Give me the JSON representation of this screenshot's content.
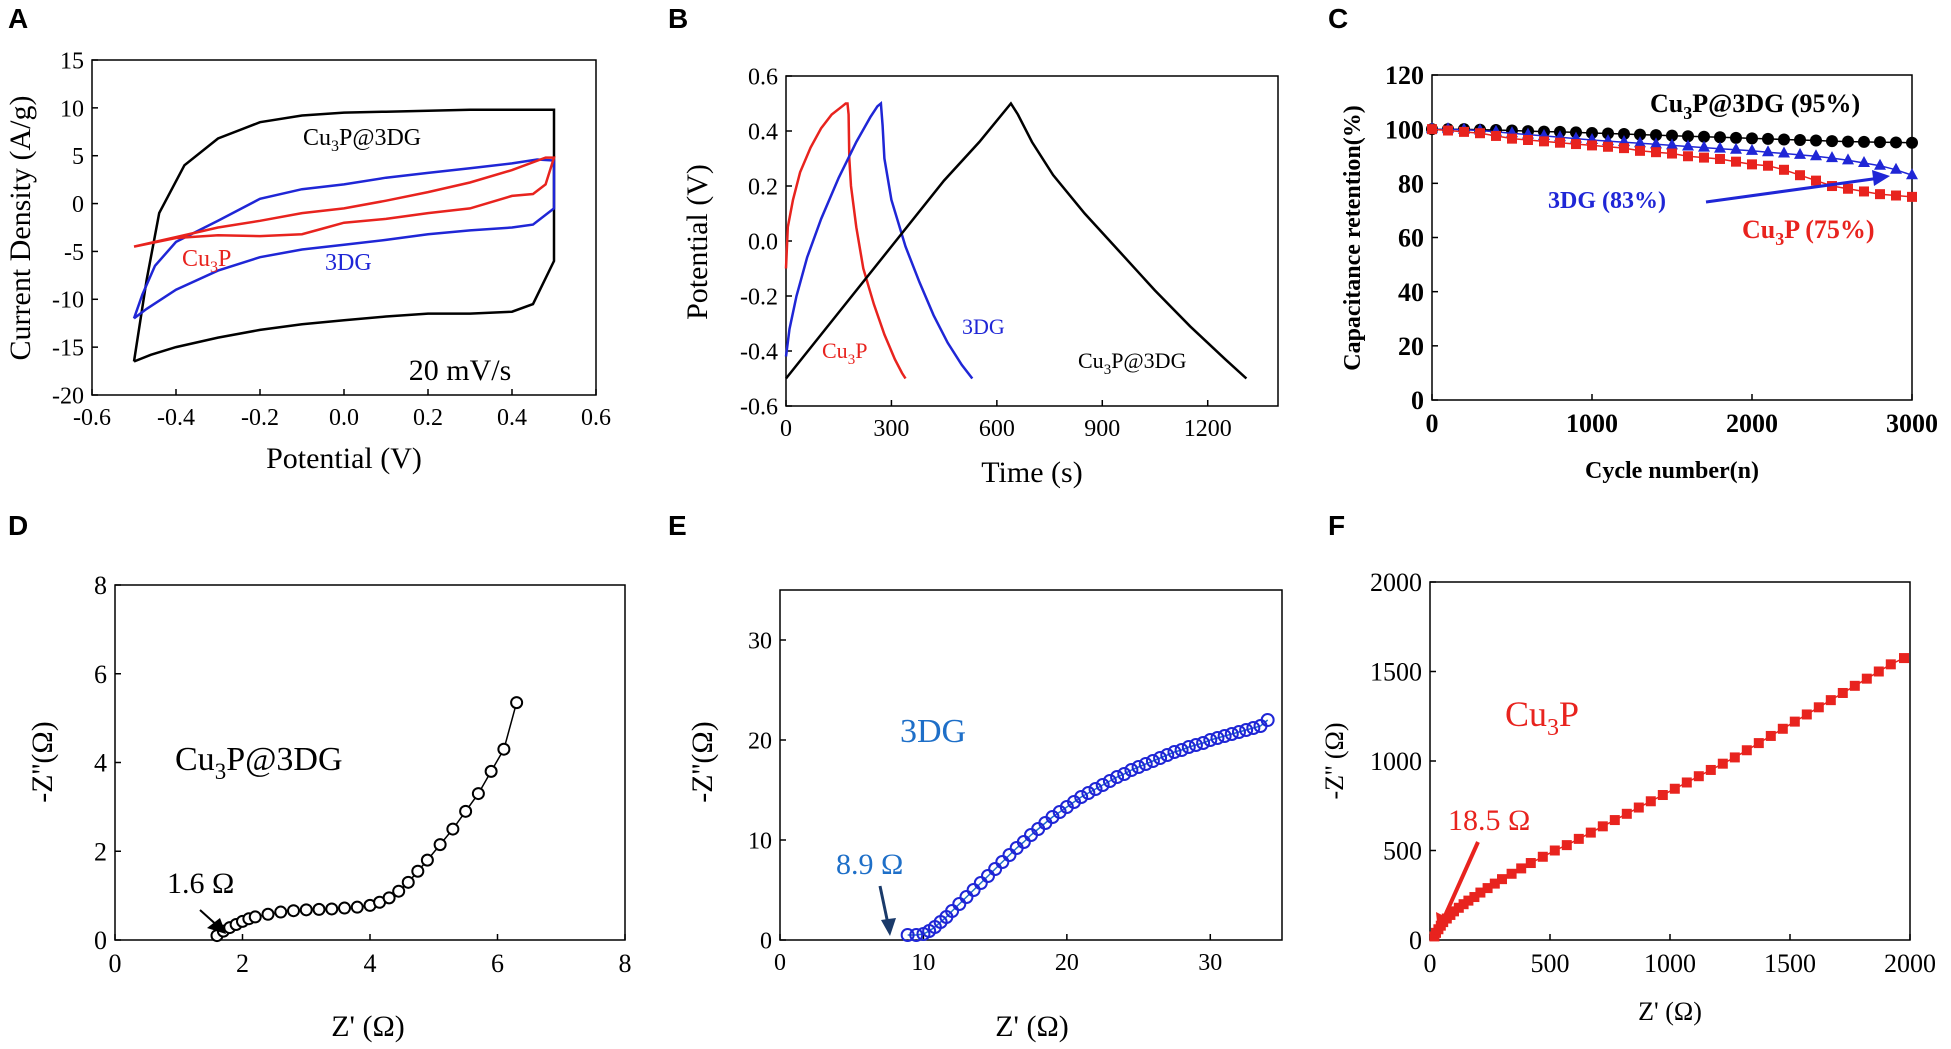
{
  "colors": {
    "black": "#000000",
    "red": "#e8231e",
    "blue": "#1f26d6",
    "steel": "#1e6fc8",
    "navy": "#1a3a6a"
  },
  "chart_data": [
    {
      "id": "A",
      "type": "line",
      "xlabel": "Potential (V)",
      "ylabel": "Current Density (A/g)",
      "xlim": [
        -0.6,
        0.6
      ],
      "ylim": [
        -20,
        15
      ],
      "xticks": [
        "-0.6",
        "-0.4",
        "-0.2",
        "0.0",
        "0.2",
        "0.4",
        "0.6"
      ],
      "yticks": [
        "15",
        "10",
        "5",
        "0",
        "-5",
        "-10",
        "-15",
        "-20"
      ],
      "annotation": "20 mV/s",
      "series": [
        {
          "name": "Cu3P@3DG",
          "label_main": "Cu",
          "label_sub": "3",
          "label_rest": "P@3DG",
          "color": "black",
          "x": [
            -0.5,
            -0.47,
            -0.44,
            -0.38,
            -0.3,
            -0.2,
            -0.1,
            0.0,
            0.1,
            0.2,
            0.3,
            0.4,
            0.5,
            0.5,
            0.45,
            0.4,
            0.3,
            0.2,
            0.1,
            0.0,
            -0.1,
            -0.2,
            -0.3,
            -0.4,
            -0.46,
            -0.5,
            -0.5
          ],
          "y": [
            -16.5,
            -8,
            -1,
            4,
            6.8,
            8.5,
            9.2,
            9.5,
            9.6,
            9.7,
            9.8,
            9.8,
            9.8,
            -6,
            -10.5,
            -11.3,
            -11.5,
            -11.5,
            -11.8,
            -12.2,
            -12.6,
            -13.2,
            -14,
            -15,
            -15.8,
            -16.5,
            -16.5
          ]
        },
        {
          "name": "3DG",
          "label_main": "3DG",
          "label_sub": "",
          "label_rest": "",
          "color": "blue",
          "x": [
            -0.5,
            -0.48,
            -0.45,
            -0.4,
            -0.3,
            -0.2,
            -0.1,
            0.0,
            0.1,
            0.2,
            0.3,
            0.4,
            0.46,
            0.5,
            0.5,
            0.45,
            0.4,
            0.3,
            0.2,
            0.1,
            0.0,
            -0.1,
            -0.2,
            -0.3,
            -0.4,
            -0.47,
            -0.5
          ],
          "y": [
            -12,
            -9.5,
            -6.5,
            -4,
            -1.8,
            0.5,
            1.5,
            2,
            2.7,
            3.2,
            3.7,
            4.2,
            4.6,
            4.5,
            -0.5,
            -2.2,
            -2.5,
            -2.8,
            -3.2,
            -3.8,
            -4.3,
            -4.8,
            -5.6,
            -7,
            -9,
            -11,
            -12
          ]
        },
        {
          "name": "Cu3P",
          "label_main": "Cu",
          "label_sub": "3",
          "label_rest": "P",
          "color": "red",
          "x": [
            -0.5,
            -0.4,
            -0.3,
            -0.2,
            -0.1,
            0.0,
            0.1,
            0.2,
            0.3,
            0.4,
            0.48,
            0.5,
            0.48,
            0.45,
            0.4,
            0.3,
            0.2,
            0.1,
            0.0,
            -0.05,
            -0.1,
            -0.2,
            -0.3,
            -0.4,
            -0.5
          ],
          "y": [
            -4.5,
            -3.5,
            -2.5,
            -1.8,
            -1,
            -0.5,
            0.3,
            1.2,
            2.2,
            3.5,
            4.8,
            4.8,
            2,
            1,
            0.8,
            -0.5,
            -1,
            -1.6,
            -2,
            -2.6,
            -3.2,
            -3.4,
            -3.3,
            -3.6,
            -4.5
          ]
        }
      ]
    },
    {
      "id": "B",
      "type": "line",
      "xlabel": "Time (s)",
      "ylabel": "Potential (V)",
      "xlim": [
        0,
        1400
      ],
      "ylim": [
        -0.6,
        0.6
      ],
      "xticks": [
        "0",
        "300",
        "600",
        "900",
        "1200"
      ],
      "yticks": [
        "0.6",
        "0.4",
        "0.2",
        "0.0",
        "-0.2",
        "-0.4",
        "-0.6"
      ],
      "series": [
        {
          "name": "Cu3P",
          "label_main": "Cu",
          "label_sub": "3",
          "label_rest": "P",
          "color": "red",
          "x": [
            0,
            5,
            20,
            40,
            70,
            100,
            130,
            160,
            170,
            175,
            178,
            180,
            185,
            200,
            220,
            250,
            280,
            310,
            330,
            340
          ],
          "y": [
            -0.1,
            0.05,
            0.15,
            0.25,
            0.34,
            0.41,
            0.46,
            0.49,
            0.5,
            0.5,
            0.46,
            0.3,
            0.2,
            0.05,
            -0.1,
            -0.23,
            -0.34,
            -0.43,
            -0.48,
            -0.5
          ]
        },
        {
          "name": "3DG",
          "label_main": "3DG",
          "label_sub": "",
          "label_rest": "",
          "color": "blue",
          "x": [
            0,
            10,
            30,
            60,
            100,
            150,
            200,
            240,
            260,
            270,
            275,
            280,
            300,
            340,
            380,
            420,
            460,
            500,
            530
          ],
          "y": [
            -0.42,
            -0.32,
            -0.2,
            -0.06,
            0.08,
            0.23,
            0.36,
            0.45,
            0.49,
            0.5,
            0.42,
            0.3,
            0.15,
            -0.02,
            -0.15,
            -0.27,
            -0.37,
            -0.45,
            -0.5
          ]
        },
        {
          "name": "Cu3P@3DG",
          "label_main": "Cu",
          "label_sub": "3",
          "label_rest": "P@3DG",
          "color": "black",
          "x": [
            0,
            150,
            300,
            450,
            550,
            640,
            660,
            700,
            760,
            850,
            950,
            1050,
            1150,
            1250,
            1310
          ],
          "y": [
            -0.5,
            -0.26,
            -0.02,
            0.22,
            0.36,
            0.5,
            0.46,
            0.36,
            0.24,
            0.1,
            -0.04,
            -0.18,
            -0.31,
            -0.43,
            -0.5
          ]
        }
      ]
    },
    {
      "id": "C",
      "type": "scatter",
      "xlabel": "Cycle number(n)",
      "ylabel": "Capacitance retention(%)",
      "xlim": [
        0,
        3000
      ],
      "ylim": [
        0,
        120
      ],
      "xticks": [
        "0",
        "1000",
        "2000",
        "3000"
      ],
      "yticks": [
        "120",
        "100",
        "80",
        "60",
        "40",
        "20",
        "0"
      ],
      "series": [
        {
          "name": "Cu3P@3DG",
          "label": "Cu3P@3DG (95%)",
          "label_main": "Cu",
          "label_sub": "3",
          "label_rest": "P@3DG (95%)",
          "color": "black",
          "x": [
            0,
            100,
            200,
            300,
            400,
            500,
            600,
            700,
            800,
            900,
            1000,
            1100,
            1200,
            1300,
            1400,
            1500,
            1600,
            1700,
            1800,
            1900,
            2000,
            2100,
            2200,
            2300,
            2400,
            2500,
            2600,
            2700,
            2800,
            2900,
            3000
          ],
          "y": [
            100,
            100,
            100,
            99.8,
            99.7,
            99.5,
            99.3,
            99.1,
            99,
            98.8,
            98.6,
            98.4,
            98.2,
            98,
            97.8,
            97.6,
            97.4,
            97.2,
            97,
            96.8,
            96.6,
            96.4,
            96.2,
            96,
            95.8,
            95.6,
            95.4,
            95.3,
            95.2,
            95.1,
            95
          ]
        },
        {
          "name": "3DG",
          "label": "3DG (83%)",
          "label_main": "3DG (83%)",
          "label_sub": "",
          "label_rest": "",
          "color": "blue",
          "x": [
            0,
            100,
            200,
            300,
            400,
            500,
            600,
            700,
            800,
            900,
            1000,
            1100,
            1200,
            1300,
            1400,
            1500,
            1600,
            1700,
            1800,
            1900,
            2000,
            2100,
            2200,
            2300,
            2400,
            2500,
            2600,
            2700,
            2800,
            2900,
            3000
          ],
          "y": [
            100,
            100,
            99.8,
            99.5,
            99,
            98.5,
            98,
            97.5,
            97,
            96.5,
            96,
            95.6,
            95.2,
            94.8,
            94.4,
            94,
            93.6,
            93.2,
            92.8,
            92.4,
            92,
            91.5,
            91,
            90.5,
            90,
            89.3,
            88.5,
            87.5,
            86.5,
            85,
            83
          ]
        },
        {
          "name": "Cu3P",
          "label": "Cu3P (75%)",
          "label_main": "Cu",
          "label_sub": "3",
          "label_rest": "P (75%)",
          "color": "red",
          "x": [
            0,
            100,
            200,
            300,
            400,
            500,
            600,
            700,
            800,
            900,
            1000,
            1100,
            1200,
            1300,
            1400,
            1500,
            1600,
            1700,
            1800,
            1900,
            2000,
            2100,
            2200,
            2300,
            2400,
            2500,
            2600,
            2700,
            2800,
            2900,
            3000
          ],
          "y": [
            100,
            99.5,
            99,
            98.5,
            97.5,
            96.5,
            96,
            95.5,
            95,
            94.5,
            94,
            93.5,
            93,
            92,
            91.5,
            91,
            90,
            89.5,
            89,
            88,
            87,
            86.5,
            85,
            83,
            81,
            79,
            78,
            77,
            76,
            75.5,
            75
          ]
        }
      ]
    },
    {
      "id": "D",
      "type": "scatter",
      "xlabel": "Z' (Ω)",
      "ylabel": "-Z''(Ω)",
      "xlim": [
        0,
        8
      ],
      "ylim": [
        0,
        8
      ],
      "xticks": [
        "0",
        "2",
        "4",
        "6",
        "8"
      ],
      "yticks": [
        "8",
        "6",
        "4",
        "2",
        "0"
      ],
      "series": [
        {
          "name": "Cu3P@3DG",
          "label_main": "Cu",
          "label_sub": "3",
          "label_rest": "P@3DG",
          "color": "black",
          "x": [
            1.6,
            1.7,
            1.8,
            1.9,
            2.0,
            2.1,
            2.2,
            2.4,
            2.6,
            2.8,
            3.0,
            3.2,
            3.4,
            3.6,
            3.8,
            4.0,
            4.15,
            4.3,
            4.45,
            4.6,
            4.75,
            4.9,
            5.1,
            5.3,
            5.5,
            5.7,
            5.9,
            6.1,
            6.3
          ],
          "y": [
            0.1,
            0.2,
            0.28,
            0.35,
            0.42,
            0.48,
            0.52,
            0.58,
            0.63,
            0.66,
            0.68,
            0.69,
            0.7,
            0.72,
            0.74,
            0.78,
            0.85,
            0.95,
            1.1,
            1.3,
            1.55,
            1.8,
            2.15,
            2.5,
            2.9,
            3.3,
            3.8,
            4.3,
            5.35
          ]
        }
      ],
      "annotation": "1.6 Ω"
    },
    {
      "id": "E",
      "type": "scatter",
      "xlabel": "Z' (Ω)",
      "ylabel": "-Z''(Ω)",
      "xlim": [
        0,
        35
      ],
      "ylim": [
        0,
        35
      ],
      "xticks": [
        "0",
        "10",
        "20",
        "30"
      ],
      "yticks": [
        "30",
        "20",
        "10",
        "0"
      ],
      "series": [
        {
          "name": "3DG",
          "label_main": "3DG",
          "label_sub": "",
          "label_rest": "",
          "color": "steel",
          "x": [
            8.9,
            9.5,
            10,
            10.4,
            10.8,
            11.2,
            11.6,
            12,
            12.5,
            13,
            13.5,
            14,
            14.5,
            15,
            15.5,
            16,
            16.5,
            17,
            17.5,
            18,
            18.5,
            19,
            19.5,
            20,
            20.5,
            21,
            21.5,
            22,
            22.5,
            23,
            23.5,
            24,
            24.5,
            25,
            25.5,
            26,
            26.5,
            27,
            27.5,
            28,
            28.5,
            29,
            29.5,
            30,
            30.5,
            31,
            31.5,
            32,
            32.5,
            33,
            33.5,
            34
          ],
          "y": [
            0.5,
            0.5,
            0.6,
            0.9,
            1.3,
            1.8,
            2.3,
            2.9,
            3.6,
            4.3,
            5,
            5.7,
            6.4,
            7.1,
            7.8,
            8.5,
            9.2,
            9.8,
            10.5,
            11.1,
            11.7,
            12.3,
            12.8,
            13.3,
            13.8,
            14.3,
            14.7,
            15.1,
            15.5,
            15.9,
            16.3,
            16.6,
            17,
            17.3,
            17.6,
            17.9,
            18.2,
            18.5,
            18.8,
            19,
            19.3,
            19.5,
            19.7,
            20,
            20.2,
            20.4,
            20.6,
            20.8,
            21,
            21.2,
            21.4,
            22
          ]
        }
      ],
      "annotation": "8.9 Ω"
    },
    {
      "id": "F",
      "type": "scatter",
      "xlabel": "Z' (Ω)",
      "ylabel": "-Z'' (Ω)",
      "xlim": [
        0,
        2000
      ],
      "ylim": [
        0,
        2000
      ],
      "xticks": [
        "0",
        "500",
        "1000",
        "1500",
        "2000"
      ],
      "yticks": [
        "2000",
        "1500",
        "1000",
        "500",
        "0"
      ],
      "series": [
        {
          "name": "Cu3P",
          "label_main": "Cu",
          "label_sub": "3",
          "label_rest": "P",
          "color": "red",
          "x": [
            18.5,
            25,
            35,
            45,
            55,
            70,
            85,
            100,
            120,
            140,
            160,
            185,
            210,
            240,
            270,
            300,
            340,
            380,
            420,
            470,
            520,
            570,
            620,
            670,
            720,
            770,
            820,
            870,
            920,
            970,
            1020,
            1070,
            1120,
            1170,
            1220,
            1270,
            1320,
            1370,
            1420,
            1470,
            1520,
            1570,
            1620,
            1670,
            1720,
            1770,
            1820,
            1870,
            1920,
            1975
          ],
          "y": [
            20,
            40,
            60,
            80,
            100,
            120,
            140,
            160,
            180,
            200,
            220,
            240,
            265,
            290,
            315,
            340,
            370,
            400,
            430,
            465,
            500,
            530,
            565,
            600,
            635,
            670,
            705,
            740,
            775,
            810,
            845,
            880,
            915,
            950,
            985,
            1020,
            1060,
            1100,
            1140,
            1180,
            1220,
            1260,
            1300,
            1340,
            1380,
            1420,
            1460,
            1500,
            1540,
            1575
          ]
        }
      ],
      "annotation": "18.5 Ω"
    }
  ]
}
